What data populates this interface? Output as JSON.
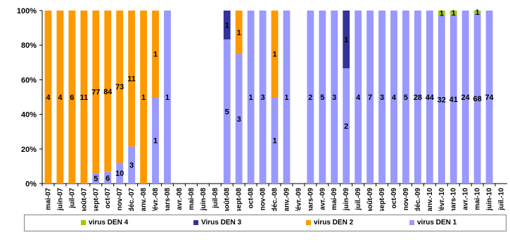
{
  "chart_data": {
    "type": "bar",
    "stacked": true,
    "ylim": [
      0,
      100
    ],
    "yticks": [
      "0%",
      "20%",
      "40%",
      "60%",
      "80%",
      "100%"
    ],
    "categories": [
      "mai-07",
      "juin-07",
      "juil-07",
      "août-07",
      "sept-07",
      "oct-07",
      "nov-07",
      "déc.-07",
      "janv.-08",
      "févr.-08",
      "mars-08",
      "avr.-08",
      "mai-08",
      "juin-08",
      "juil-08",
      "août-08",
      "sept-08",
      "oct-08",
      "nov-08",
      "déc.-08",
      "janv.-09",
      "févr.-09",
      "mars-09",
      "avr.-09",
      "mai-09",
      "juin-09",
      "juil.-09",
      "août-09",
      "sept-09",
      "oct-09",
      "nov-09",
      "déc.-09",
      "janv.-10",
      "févr.-10",
      "mars-10",
      "avr.-10",
      "mai-10",
      "juin-10",
      "juil.-10"
    ],
    "series": [
      {
        "name": "virus DEN 1",
        "color": "#9999ff",
        "values": [
          0,
          0,
          0,
          0,
          5,
          6,
          10,
          3,
          0,
          1,
          1,
          0,
          0,
          0,
          0,
          5,
          3,
          1,
          3,
          1,
          1,
          0,
          2,
          5,
          3,
          2,
          4,
          7,
          3,
          4,
          5,
          28,
          44,
          32,
          41,
          24,
          68,
          74,
          0
        ],
        "labels": [
          "",
          "",
          "",
          "",
          "5",
          "6",
          "10",
          "3",
          "",
          "1",
          "1",
          "",
          "",
          "",
          "",
          "5",
          "3",
          "1",
          "3",
          "1",
          "1",
          "",
          "2",
          "5",
          "3",
          "2",
          "4",
          "7",
          "3",
          "4",
          "5",
          "28",
          "44",
          "32",
          "41",
          "24",
          "68",
          "74",
          ""
        ]
      },
      {
        "name": "virus DEN 2",
        "color": "#ff9900",
        "values": [
          4,
          4,
          6,
          11,
          77,
          84,
          73,
          11,
          1,
          1,
          0,
          0,
          0,
          0,
          0,
          0,
          1,
          0,
          0,
          1,
          0,
          0,
          0,
          0,
          0,
          0,
          0,
          0,
          0,
          0,
          0,
          0,
          0,
          0,
          0,
          0,
          0,
          0,
          0
        ],
        "labels": [
          "4",
          "4",
          "6",
          "11",
          "77",
          "84",
          "73",
          "11",
          "1",
          "1",
          "",
          "",
          "",
          "",
          "",
          "",
          "1",
          "",
          "",
          "1",
          "",
          "",
          "",
          "",
          "",
          "",
          "",
          "",
          "",
          "",
          "",
          "",
          "",
          "",
          "",
          "",
          "",
          "",
          ""
        ]
      },
      {
        "name": "Virus DEN 3",
        "color": "#333399",
        "values": [
          0,
          0,
          0,
          0,
          0,
          0,
          0,
          0,
          0,
          0,
          0,
          0,
          0,
          0,
          0,
          1,
          0,
          0,
          0,
          0,
          0,
          0,
          0,
          0,
          0,
          1,
          0,
          0,
          0,
          0,
          0,
          0,
          0,
          0,
          0,
          0,
          0,
          0,
          0
        ],
        "labels": [
          "",
          "",
          "",
          "",
          "",
          "",
          "",
          "",
          "",
          "",
          "",
          "",
          "",
          "",
          "",
          "1",
          "",
          "",
          "",
          "",
          "",
          "",
          "",
          "",
          "",
          "1",
          "",
          "",
          "",
          "",
          "",
          "",
          "",
          "",
          "",
          "",
          "",
          "",
          ""
        ]
      },
      {
        "name": "virus DEN 4",
        "color": "#99cc00",
        "values": [
          0,
          0,
          0,
          0,
          0,
          0,
          0,
          0,
          0,
          0,
          0,
          0,
          0,
          0,
          0,
          0,
          0,
          0,
          0,
          0,
          0,
          0,
          0,
          0,
          0,
          0,
          0,
          0,
          0,
          0,
          0,
          0,
          0,
          1,
          1,
          0,
          1,
          0,
          0
        ],
        "labels": [
          "",
          "",
          "",
          "",
          "",
          "",
          "",
          "",
          "",
          "",
          "",
          "",
          "",
          "",
          "",
          "",
          "",
          "",
          "",
          "",
          "",
          "",
          "",
          "",
          "",
          "",
          "",
          "",
          "",
          "",
          "",
          "",
          "",
          "1",
          "1",
          "",
          "1",
          "",
          ""
        ]
      }
    ],
    "legend": {
      "position": "bottom",
      "order": [
        "virus DEN 4",
        "Virus DEN 3",
        "virus DEN 2",
        "virus DEN 1"
      ]
    },
    "grid": false
  }
}
